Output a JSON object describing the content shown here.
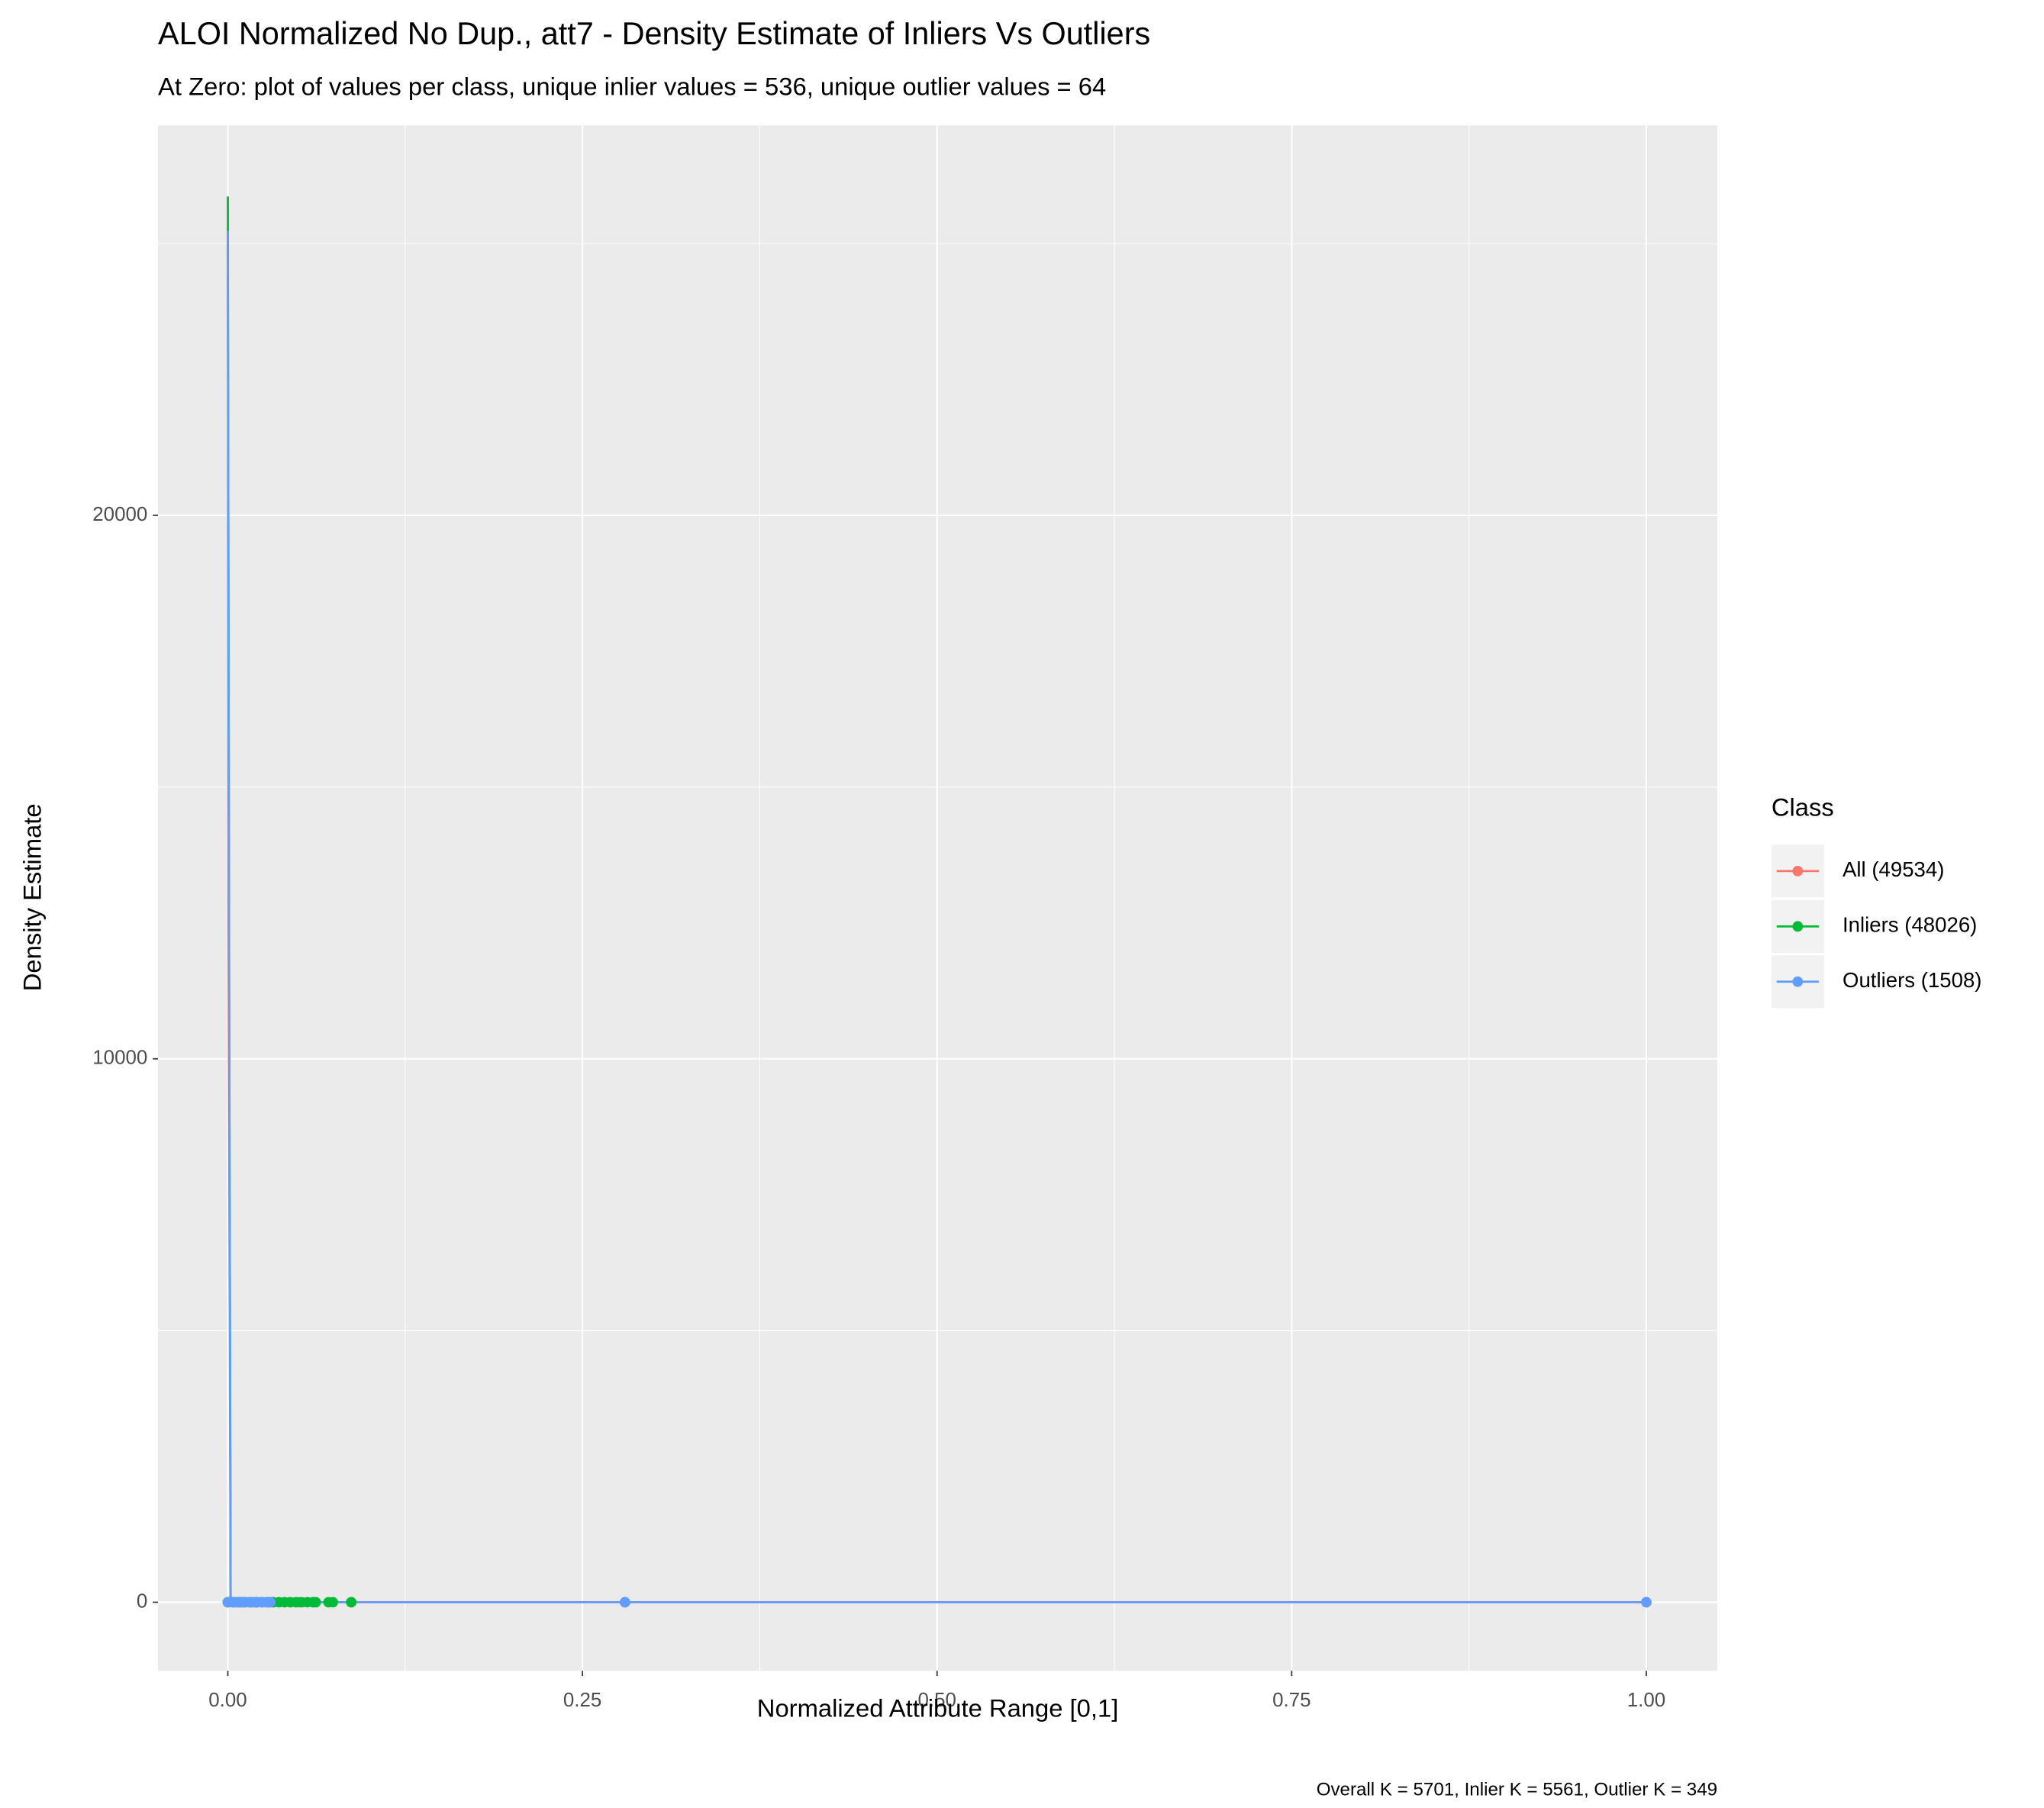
{
  "chart_data": {
    "type": "line",
    "title": "ALOI Normalized No Dup., att7 - Density Estimate of Inliers Vs Outliers",
    "subtitle": "At Zero: plot of values per class, unique inlier values = 536, unique outlier values = 64",
    "x_label": "Normalized Attribute Range [0,1]",
    "y_label": "Density Estimate",
    "caption": "Overall K = 5701, Inlier K = 5561, Outlier K = 349",
    "legend_title": "Class",
    "legend_position": "right",
    "grid": true,
    "xlim": [
      -0.0492,
      1.0501
    ],
    "ylim": [
      -1261,
      27176
    ],
    "xticks": [
      {
        "value": 0,
        "label": "0.00"
      },
      {
        "value": 0.25,
        "label": "0.25"
      },
      {
        "value": 0.5,
        "label": "0.50"
      },
      {
        "value": 0.75,
        "label": "0.75"
      },
      {
        "value": 1,
        "label": "1.00"
      }
    ],
    "xminor": [
      0.125,
      0.375,
      0.625,
      0.875
    ],
    "yticks": [
      0,
      10000,
      20000
    ],
    "yminor": [
      5000,
      15000,
      25000
    ],
    "series": [
      {
        "name": "All (49534)",
        "color": "#f8766d",
        "x": [
          0,
          0.0005,
          0.002,
          1
        ],
        "values": [
          25000,
          12000,
          0,
          0
        ],
        "points": {
          "x": [
            0,
            0.01,
            0.02,
            0.03,
            0.05,
            0.087,
            0.28,
            1
          ],
          "y": [
            0,
            0,
            0,
            0,
            0,
            0,
            0,
            0
          ]
        }
      },
      {
        "name": "Inliers (48026)",
        "color": "#00ba38",
        "x": [
          0,
          0.0008,
          0.002,
          0.087
        ],
        "values": [
          25867,
          12900,
          0,
          0
        ],
        "points": {
          "x": [
            0,
            0.004,
            0.008,
            0.012,
            0.016,
            0.02,
            0.024,
            0.028,
            0.032,
            0.036,
            0.04,
            0.044,
            0.048,
            0.052,
            0.056,
            0.06,
            0.062,
            0.071,
            0.074,
            0.087
          ],
          "y": [
            0,
            0,
            0,
            0,
            0,
            0,
            0,
            0,
            0,
            0,
            0,
            0,
            0,
            0,
            0,
            0,
            0,
            0,
            0,
            0
          ]
        }
      },
      {
        "name": "Outliers (1508)",
        "color": "#619cff",
        "x": [
          0,
          0.0009,
          0.002,
          1
        ],
        "values": [
          25236,
          12000,
          0,
          0
        ],
        "points": {
          "x": [
            0,
            0.003,
            0.006,
            0.009,
            0.012,
            0.015,
            0.018,
            0.021,
            0.024,
            0.027,
            0.03,
            0.28,
            1
          ],
          "y": [
            0,
            0,
            0,
            0,
            0,
            0,
            0,
            0,
            0,
            0,
            0,
            0,
            0
          ]
        }
      }
    ]
  }
}
